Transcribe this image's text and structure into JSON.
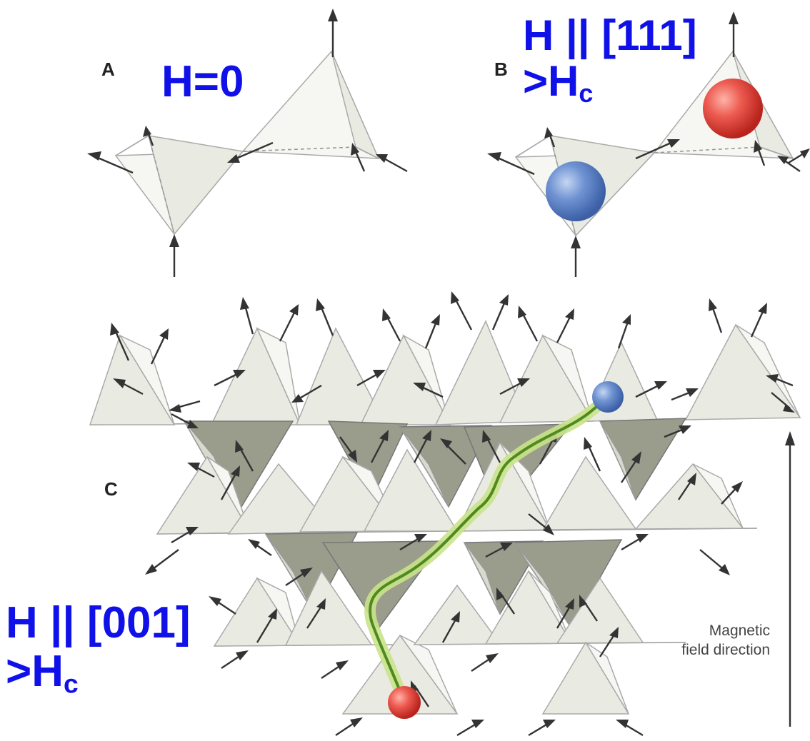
{
  "panels": {
    "a": {
      "letter": "A",
      "label": "H=0"
    },
    "b": {
      "letter": "B",
      "label_line1": "H || [111]",
      "label_line2_main": ">H",
      "label_line2_sub": "c"
    },
    "c": {
      "letter": "C",
      "label_line1": "H || [001]",
      "label_line2_main": ">H",
      "label_line2_sub": "c"
    }
  },
  "field_direction": {
    "line1": "Magnetic",
    "line2": "field direction"
  },
  "colors": {
    "label_blue": "#1010e8",
    "north_pole_red": "#e8504f",
    "south_pole_blue": "#6a8fd0",
    "dirac_string_green": "#8fc43c"
  }
}
